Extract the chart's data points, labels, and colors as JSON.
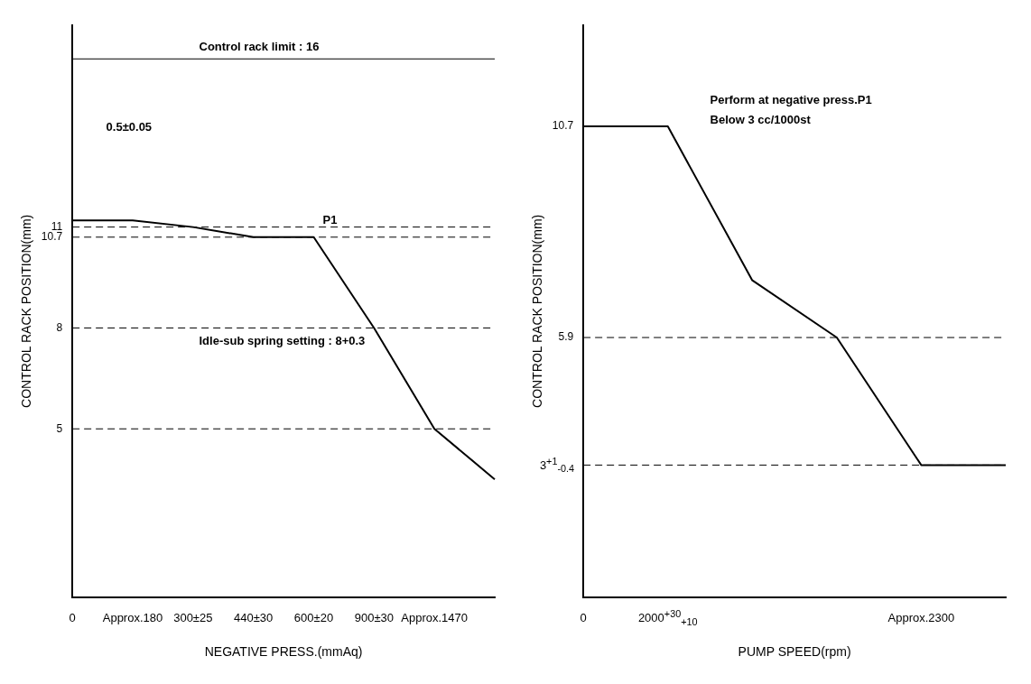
{
  "chart_data": [
    {
      "type": "line",
      "xlabel": "NEGATIVE PRESS.(mmAq)",
      "ylabel": "CONTROL RACK POSITION(mm)",
      "color": "#000000",
      "marker": "none",
      "line_style": "solid",
      "grid": false,
      "legend": false,
      "categories": [
        "0",
        "Approx.180",
        "300±25",
        "440±30",
        "600±20",
        "900±30",
        "Approx.1470",
        null
      ],
      "values": [
        11.2,
        11.2,
        11,
        10.7,
        10.7,
        8,
        5,
        3.5
      ],
      "ylim": [
        0,
        17
      ],
      "yticks": [
        5,
        8,
        10.7,
        11
      ],
      "ref_lines": [
        {
          "axis": "y",
          "value": 16,
          "label": "Control rack limit : 16",
          "line_style": "solid"
        },
        {
          "axis": "y",
          "value": 11,
          "line_style": "dashed"
        },
        {
          "axis": "y",
          "value": 10.7,
          "line_style": "dashed"
        },
        {
          "axis": "y",
          "value": 8,
          "line_style": "dashed"
        },
        {
          "axis": "y",
          "value": 5,
          "line_style": "dashed"
        }
      ],
      "annotations": [
        {
          "text": "P1",
          "x": "600±20",
          "y": 10.7
        },
        {
          "text": "Idle-sub spring setting : 8+0.3",
          "x": "900±30",
          "y": 8
        },
        "0.5±0.05"
      ]
    },
    {
      "type": "line",
      "xlabel": "PUMP SPEED(rpm)",
      "ylabel": "CONTROL RACK POSITION(mm)",
      "color": "#000000",
      "marker": "none",
      "line_style": "solid",
      "grid": false,
      "legend": false,
      "categories": [
        "0",
        "2000$^{+30}$$_{+10}$",
        null,
        null,
        "Approx.2300",
        null
      ],
      "values": [
        10.7,
        10.7,
        7.2,
        5.9,
        3,
        3
      ],
      "ylim": [
        0,
        13
      ],
      "yticks": [
        {
          "value": 3,
          "label": "3$^{+1}$$_{-0.4}$"
        },
        5.9,
        10.7
      ],
      "ref_lines": [
        {
          "axis": "y",
          "value": 5.9,
          "line_style": "dashed"
        },
        {
          "axis": "y",
          "value": 3,
          "line_style": "dashed"
        }
      ],
      "annotations": [
        "Perform at negative press.P1",
        "Below 3 cc/1000st"
      ]
    }
  ]
}
